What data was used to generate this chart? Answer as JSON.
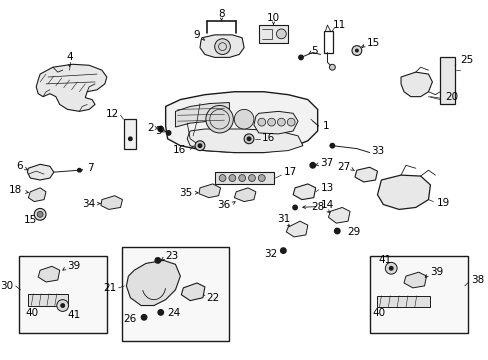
{
  "bg_color": "#ffffff",
  "line_color": "#1a1a1a",
  "fig_width": 4.89,
  "fig_height": 3.6,
  "dpi": 100,
  "label_fontsize": 7.5,
  "label_color": "#000000"
}
